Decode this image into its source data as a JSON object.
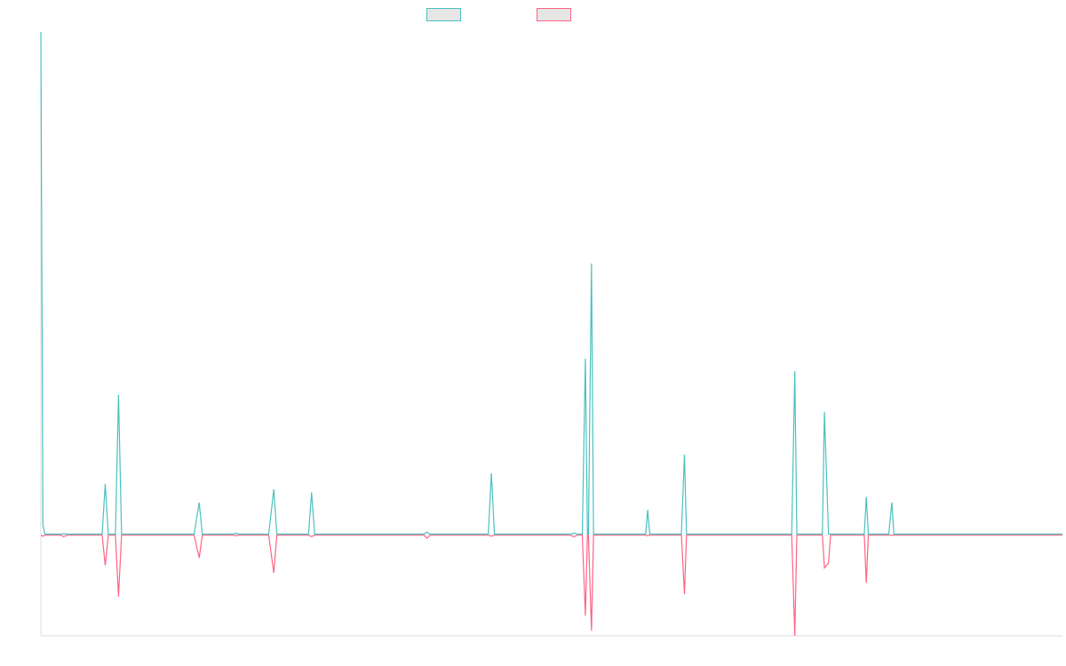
{
  "chart_data": {
    "type": "line",
    "title": "",
    "xlabel": "",
    "ylabel": "",
    "x_range": [
      0,
      1000
    ],
    "ylim": [
      -200,
      1000
    ],
    "grid": false,
    "legend": "top-center",
    "series": [
      {
        "color": "#4bc0c0",
        "points": [
          [
            0,
            1000
          ],
          [
            2,
            20
          ],
          [
            4,
            2
          ],
          [
            20,
            2
          ],
          [
            22,
            3
          ],
          [
            26,
            2
          ],
          [
            60,
            2
          ],
          [
            63,
            102
          ],
          [
            66,
            2
          ],
          [
            73,
            2
          ],
          [
            76,
            279
          ],
          [
            79,
            2
          ],
          [
            150,
            2
          ],
          [
            155,
            65
          ],
          [
            158,
            2
          ],
          [
            188,
            2
          ],
          [
            191,
            4
          ],
          [
            194,
            2
          ],
          [
            223,
            2
          ],
          [
            228,
            91
          ],
          [
            231,
            2
          ],
          [
            262,
            2
          ],
          [
            265,
            85
          ],
          [
            268,
            2
          ],
          [
            375,
            2
          ],
          [
            378,
            6
          ],
          [
            381,
            2
          ],
          [
            438,
            2
          ],
          [
            441,
            123
          ],
          [
            444,
            2
          ],
          [
            518,
            2
          ],
          [
            522,
            4
          ],
          [
            525,
            2
          ],
          [
            530,
            2
          ],
          [
            533,
            351
          ],
          [
            535,
            2
          ],
          [
            536,
            2
          ],
          [
            539,
            540
          ],
          [
            541,
            2
          ],
          [
            592,
            2
          ],
          [
            594,
            50
          ],
          [
            596,
            2
          ],
          [
            627,
            2
          ],
          [
            630,
            160
          ],
          [
            632,
            2
          ],
          [
            735,
            2
          ],
          [
            738,
            326
          ],
          [
            740,
            2
          ],
          [
            765,
            2
          ],
          [
            767,
            245
          ],
          [
            771,
            2
          ],
          [
            806,
            2
          ],
          [
            808,
            76
          ],
          [
            810,
            2
          ],
          [
            830,
            2
          ],
          [
            833,
            65
          ],
          [
            835,
            2
          ],
          [
            1000,
            2
          ]
        ]
      },
      {
        "color": "#ff6384",
        "points": [
          [
            0,
            0
          ],
          [
            2,
            -2
          ],
          [
            4,
            0
          ],
          [
            20,
            0
          ],
          [
            22,
            -3
          ],
          [
            26,
            0
          ],
          [
            60,
            0
          ],
          [
            63,
            -60
          ],
          [
            66,
            0
          ],
          [
            73,
            0
          ],
          [
            76,
            -122
          ],
          [
            79,
            0
          ],
          [
            150,
            0
          ],
          [
            155,
            -45
          ],
          [
            158,
            0
          ],
          [
            188,
            0
          ],
          [
            191,
            -1
          ],
          [
            194,
            0
          ],
          [
            223,
            0
          ],
          [
            228,
            -75
          ],
          [
            231,
            0
          ],
          [
            262,
            0
          ],
          [
            265,
            -3
          ],
          [
            268,
            0
          ],
          [
            375,
            0
          ],
          [
            378,
            -6
          ],
          [
            381,
            0
          ],
          [
            438,
            0
          ],
          [
            441,
            -2
          ],
          [
            444,
            0
          ],
          [
            518,
            0
          ],
          [
            522,
            -3
          ],
          [
            525,
            0
          ],
          [
            530,
            0
          ],
          [
            533,
            -160
          ],
          [
            535,
            0
          ],
          [
            536,
            0
          ],
          [
            539,
            -190
          ],
          [
            541,
            0
          ],
          [
            592,
            0
          ],
          [
            594,
            -1
          ],
          [
            596,
            0
          ],
          [
            627,
            0
          ],
          [
            630,
            -117
          ],
          [
            632,
            0
          ],
          [
            735,
            0
          ],
          [
            738,
            -200
          ],
          [
            740,
            0
          ],
          [
            765,
            0
          ],
          [
            767,
            -65
          ],
          [
            771,
            -55
          ],
          [
            773,
            0
          ],
          [
            806,
            0
          ],
          [
            808,
            -95
          ],
          [
            810,
            0
          ],
          [
            1000,
            0
          ]
        ]
      }
    ]
  }
}
